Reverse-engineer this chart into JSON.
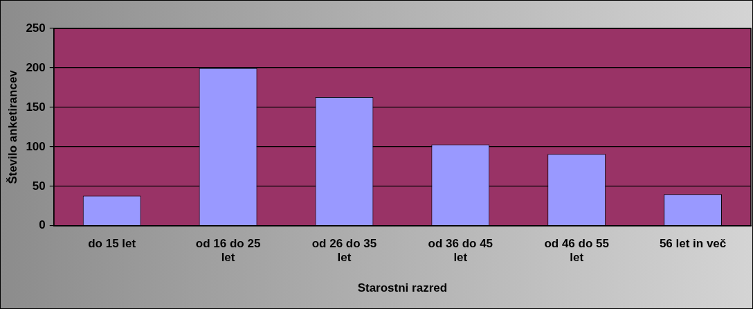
{
  "chart_data": {
    "type": "bar",
    "xlabel": "Starostni razred",
    "ylabel": "Število anketirancev",
    "categories": [
      "do 15 let",
      "od 16 do 25 let",
      "od 26 do 35 let",
      "od 36 do 45 let",
      "od 46 do 55 let",
      "56 let in več"
    ],
    "values": [
      38,
      200,
      163,
      103,
      91,
      40
    ],
    "color": "#9999ff",
    "ylim": [
      0,
      250
    ],
    "yticks": [
      0,
      50,
      100,
      150,
      200,
      250
    ],
    "grid": "y",
    "legend": false
  }
}
